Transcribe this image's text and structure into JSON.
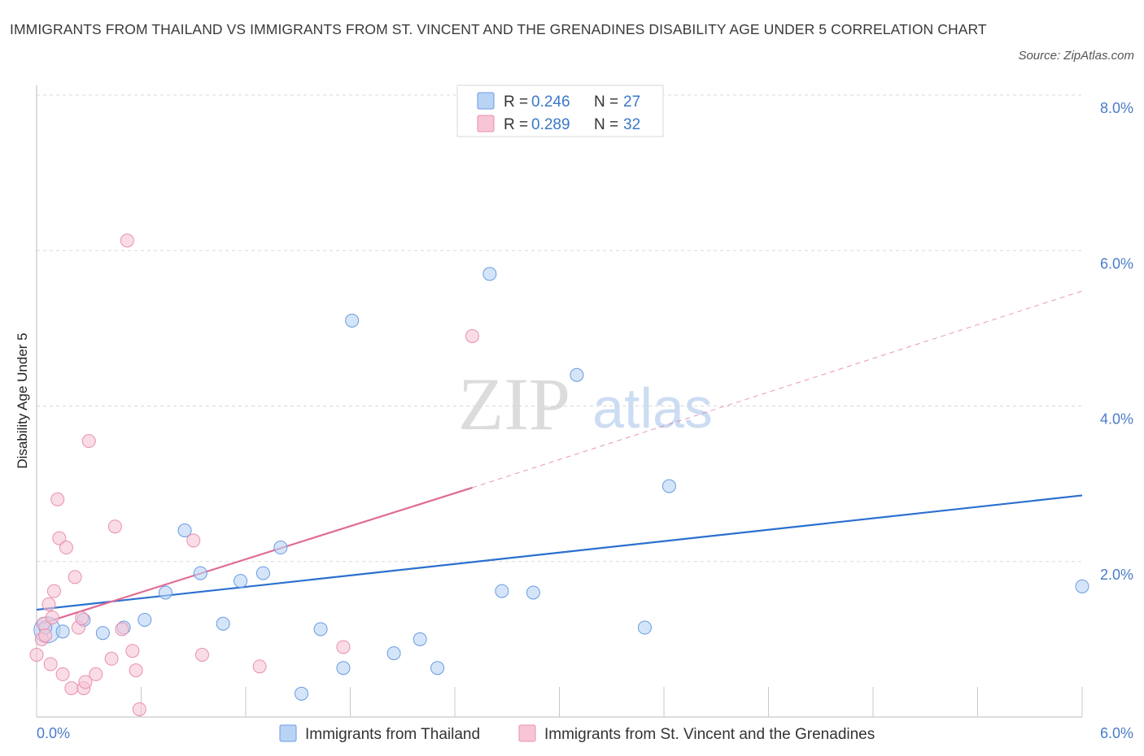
{
  "title": "IMMIGRANTS FROM THAILAND VS IMMIGRANTS FROM ST. VINCENT AND THE GRENADINES DISABILITY AGE UNDER 5 CORRELATION CHART",
  "source": "Source: ZipAtlas.com",
  "watermark": {
    "zip": "ZIP",
    "atlas": "atlas"
  },
  "colors": {
    "thailand_fill": "#b9d3f5",
    "thailand_stroke": "#6a9be0",
    "thailand_line": "#2a6fd0",
    "stvincent_fill": "#f7c5d5",
    "stvincent_stroke": "#e890ad",
    "stvincent_line": "#e06b96",
    "grid": "#d8d8d8",
    "tick_text": "#4a7cc7"
  },
  "legend": {
    "rows": [
      {
        "r_label": "R = ",
        "r_value": "0.246",
        "n_label": "N = ",
        "n_value": "27"
      },
      {
        "r_label": "R = ",
        "r_value": "0.289",
        "n_label": "N = ",
        "n_value": "32"
      }
    ]
  },
  "chart_data": {
    "type": "scatter",
    "title": "IMMIGRANTS FROM THAILAND VS IMMIGRANTS FROM ST. VINCENT AND THE GRENADINES DISABILITY AGE UNDER 5 CORRELATION CHART",
    "xlabel": "",
    "ylabel": "Disability Age Under 5",
    "xlim": [
      0,
      6
    ],
    "ylim": [
      0,
      8
    ],
    "x_tick_labels": [
      "0.0%",
      "6.0%"
    ],
    "y_ticks": [
      2,
      4,
      6,
      8
    ],
    "y_tick_labels": [
      "2.0%",
      "4.0%",
      "6.0%",
      "8.0%"
    ],
    "grid": true,
    "legend_position": "top-center",
    "series": [
      {
        "name": "Immigrants from Thailand",
        "points": [
          [
            0.05,
            1.15
          ],
          [
            0.15,
            1.1
          ],
          [
            0.27,
            1.25
          ],
          [
            0.38,
            1.08
          ],
          [
            0.5,
            1.15
          ],
          [
            0.62,
            1.25
          ],
          [
            0.74,
            1.6
          ],
          [
            0.85,
            2.4
          ],
          [
            0.94,
            1.85
          ],
          [
            1.07,
            1.2
          ],
          [
            1.17,
            1.75
          ],
          [
            1.3,
            1.85
          ],
          [
            1.4,
            2.18
          ],
          [
            1.52,
            0.3
          ],
          [
            1.63,
            1.13
          ],
          [
            1.76,
            0.63
          ],
          [
            1.81,
            5.1
          ],
          [
            2.05,
            0.82
          ],
          [
            2.2,
            1.0
          ],
          [
            2.3,
            0.63
          ],
          [
            2.6,
            5.7
          ],
          [
            2.67,
            1.62
          ],
          [
            2.85,
            1.6
          ],
          [
            3.1,
            4.4
          ],
          [
            3.49,
            1.15
          ],
          [
            3.63,
            2.97
          ],
          [
            6.0,
            1.68
          ]
        ],
        "trend": {
          "x": [
            0,
            6
          ],
          "y": [
            1.38,
            2.85
          ],
          "style": "solid"
        }
      },
      {
        "name": "Immigrants from St. Vincent and the Grenadines",
        "points": [
          [
            0.0,
            0.8
          ],
          [
            0.03,
            1.0
          ],
          [
            0.04,
            1.2
          ],
          [
            0.05,
            1.05
          ],
          [
            0.07,
            1.45
          ],
          [
            0.08,
            0.68
          ],
          [
            0.09,
            1.28
          ],
          [
            0.1,
            1.62
          ],
          [
            0.12,
            2.8
          ],
          [
            0.13,
            2.3
          ],
          [
            0.15,
            0.55
          ],
          [
            0.17,
            2.18
          ],
          [
            0.2,
            0.37
          ],
          [
            0.22,
            1.8
          ],
          [
            0.24,
            1.15
          ],
          [
            0.26,
            1.27
          ],
          [
            0.27,
            0.37
          ],
          [
            0.28,
            0.45
          ],
          [
            0.3,
            3.55
          ],
          [
            0.34,
            0.55
          ],
          [
            0.43,
            0.75
          ],
          [
            0.45,
            2.45
          ],
          [
            0.49,
            1.13
          ],
          [
            0.52,
            6.13
          ],
          [
            0.55,
            0.85
          ],
          [
            0.57,
            0.6
          ],
          [
            0.59,
            0.1
          ],
          [
            0.9,
            2.27
          ],
          [
            0.95,
            0.8
          ],
          [
            1.28,
            0.65
          ],
          [
            1.76,
            0.9
          ],
          [
            2.5,
            4.9
          ]
        ],
        "trend": {
          "x": [
            0,
            2.5,
            6
          ],
          "y": [
            1.18,
            2.95,
            5.48
          ],
          "solid_until": 2.5,
          "style": "solid-then-dashed"
        }
      }
    ]
  }
}
